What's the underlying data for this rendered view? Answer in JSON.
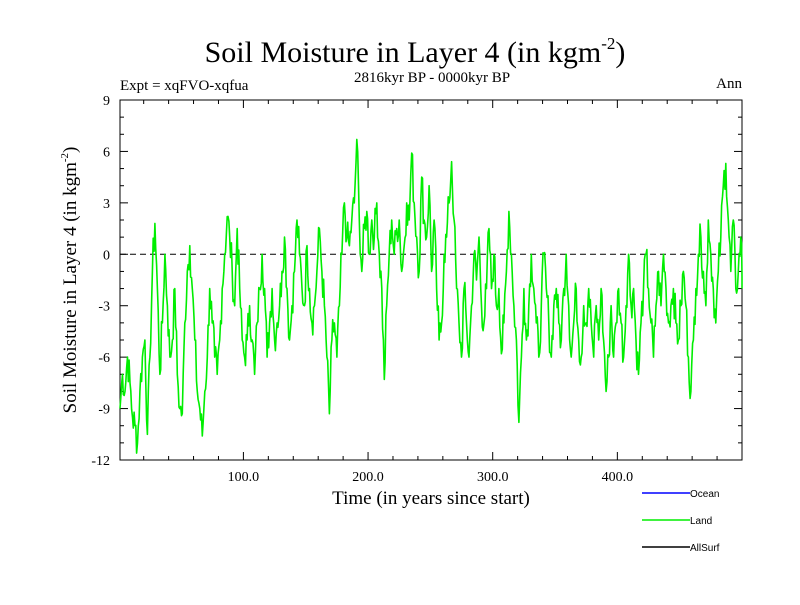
{
  "chart_data": {
    "type": "line",
    "title": "Soil Moisture in Layer 4 (in kgm",
    "title_exponent": "-2",
    "title_close": ")",
    "subtitle": "2816kyr BP - 0000kyr BP",
    "expt_label": "Expt = xqFVO-xqfua",
    "period_label": "Ann",
    "xlabel": "Time (in years since start)",
    "ylabel": "Soil Moisture in Layer 4 (in kgm",
    "ylabel_exponent": "-2",
    "ylabel_close": ")",
    "xlim": [
      1,
      500
    ],
    "ylim": [
      -12,
      9
    ],
    "x_ticks": [
      100,
      200,
      300,
      400
    ],
    "x_tick_labels": [
      "100.0",
      "200.0",
      "300.0",
      "400.0"
    ],
    "y_ticks": [
      -12,
      -9,
      -6,
      -3,
      0,
      3,
      6,
      9
    ],
    "y_tick_labels": [
      "-12",
      "-9",
      "-6",
      "-3",
      "0",
      "3",
      "6",
      "9"
    ],
    "zero_line": true,
    "legend": [
      {
        "name": "Ocean",
        "color": "#0000ff"
      },
      {
        "name": "Land",
        "color": "#00ee00"
      },
      {
        "name": "AllSurf",
        "color": "#000000"
      }
    ],
    "series": [
      {
        "name": "Land",
        "color": "#00ee00",
        "anchors": [
          [
            1,
            -9
          ],
          [
            3,
            -7
          ],
          [
            5,
            -8
          ],
          [
            7,
            -6
          ],
          [
            9,
            -7.5
          ],
          [
            11,
            -9.5
          ],
          [
            13,
            -10
          ],
          [
            15,
            -11
          ],
          [
            17,
            -8
          ],
          [
            19,
            -6
          ],
          [
            21,
            -5
          ],
          [
            23,
            -10.5
          ],
          [
            25,
            -6
          ],
          [
            27,
            -1
          ],
          [
            29,
            1.8
          ],
          [
            31,
            -2
          ],
          [
            33,
            -7
          ],
          [
            35,
            -4
          ],
          [
            37,
            0
          ],
          [
            39,
            -3
          ],
          [
            41,
            -6
          ],
          [
            43,
            -5
          ],
          [
            45,
            -2
          ],
          [
            47,
            -7
          ],
          [
            49,
            -9
          ],
          [
            51,
            -9.3
          ],
          [
            53,
            -4
          ],
          [
            55,
            -1
          ],
          [
            57,
            0.5
          ],
          [
            59,
            -2
          ],
          [
            61,
            -5
          ],
          [
            63,
            -8
          ],
          [
            65,
            -9
          ],
          [
            67,
            -10.6
          ],
          [
            69,
            -8
          ],
          [
            71,
            -6
          ],
          [
            73,
            -2
          ],
          [
            75,
            -4
          ],
          [
            77,
            -6
          ],
          [
            79,
            -7
          ],
          [
            81,
            -5
          ],
          [
            83,
            -2
          ],
          [
            85,
            0
          ],
          [
            87,
            2.2
          ],
          [
            89,
            1
          ],
          [
            91,
            -1
          ],
          [
            93,
            -3
          ],
          [
            95,
            1.5
          ],
          [
            97,
            -2
          ],
          [
            99,
            -5
          ],
          [
            101,
            -6
          ],
          [
            103,
            -5
          ],
          [
            105,
            -3
          ],
          [
            107,
            -5
          ],
          [
            109,
            -7
          ],
          [
            111,
            -4
          ],
          [
            113,
            -2
          ],
          [
            115,
            0
          ],
          [
            117,
            -2
          ],
          [
            119,
            -6
          ],
          [
            121,
            -4
          ],
          [
            123,
            -2
          ],
          [
            125,
            -5
          ],
          [
            127,
            -4
          ],
          [
            129,
            -3
          ],
          [
            131,
            -1
          ],
          [
            133,
            1
          ],
          [
            135,
            -2
          ],
          [
            137,
            -5
          ],
          [
            139,
            -3
          ],
          [
            141,
            -1
          ],
          [
            143,
            2
          ],
          [
            145,
            0
          ],
          [
            147,
            -2
          ],
          [
            149,
            -3
          ],
          [
            151,
            0.5
          ],
          [
            153,
            -2
          ],
          [
            155,
            -4
          ],
          [
            157,
            -3
          ],
          [
            159,
            -1
          ],
          [
            161,
            1.5
          ],
          [
            163,
            -1
          ],
          [
            165,
            -3
          ],
          [
            167,
            -6
          ],
          [
            169,
            -9.3
          ],
          [
            171,
            -5
          ],
          [
            173,
            -4
          ],
          [
            175,
            -6
          ],
          [
            177,
            -3
          ],
          [
            179,
            0
          ],
          [
            181,
            3
          ],
          [
            183,
            1
          ],
          [
            185,
            0.5
          ],
          [
            187,
            2
          ],
          [
            189,
            3
          ],
          [
            191,
            6.7
          ],
          [
            193,
            2
          ],
          [
            195,
            -1
          ],
          [
            197,
            1.5
          ],
          [
            199,
            2.5
          ],
          [
            201,
            0
          ],
          [
            203,
            2
          ],
          [
            205,
            1
          ],
          [
            207,
            3
          ],
          [
            209,
            0
          ],
          [
            211,
            -2
          ],
          [
            213,
            -7.3
          ],
          [
            215,
            -3
          ],
          [
            217,
            0
          ],
          [
            219,
            2
          ],
          [
            221,
            0
          ],
          [
            223,
            1.5
          ],
          [
            225,
            2
          ],
          [
            227,
            -1
          ],
          [
            229,
            0.5
          ],
          [
            231,
            3
          ],
          [
            233,
            2
          ],
          [
            235,
            5.9
          ],
          [
            237,
            3
          ],
          [
            239,
            1
          ],
          [
            241,
            -1
          ],
          [
            243,
            4.5
          ],
          [
            245,
            2
          ],
          [
            247,
            1
          ],
          [
            249,
            4
          ],
          [
            251,
            -1
          ],
          [
            253,
            2
          ],
          [
            255,
            -2
          ],
          [
            257,
            -5
          ],
          [
            259,
            -4
          ],
          [
            261,
            0
          ],
          [
            263,
            1
          ],
          [
            265,
            3
          ],
          [
            267,
            5.4
          ],
          [
            269,
            2
          ],
          [
            271,
            -2
          ],
          [
            273,
            -4
          ],
          [
            275,
            -6
          ],
          [
            277,
            -2
          ],
          [
            279,
            -4
          ],
          [
            281,
            -6
          ],
          [
            283,
            -3
          ],
          [
            285,
            0
          ],
          [
            287,
            -1.5
          ],
          [
            289,
            1
          ],
          [
            291,
            -3
          ],
          [
            293,
            -4
          ],
          [
            295,
            -2
          ],
          [
            297,
            1.5
          ],
          [
            299,
            -2
          ],
          [
            301,
            0
          ],
          [
            303,
            -3
          ],
          [
            305,
            -2
          ],
          [
            307,
            -5.8
          ],
          [
            309,
            -4
          ],
          [
            311,
            -1
          ],
          [
            313,
            2.5
          ],
          [
            315,
            0
          ],
          [
            317,
            -3
          ],
          [
            319,
            -5
          ],
          [
            321,
            -9.8
          ],
          [
            323,
            -6
          ],
          [
            325,
            -2
          ],
          [
            327,
            -5
          ],
          [
            329,
            -3
          ],
          [
            331,
            0
          ],
          [
            333,
            -2
          ],
          [
            335,
            -4
          ],
          [
            337,
            -6
          ],
          [
            339,
            -3
          ],
          [
            341,
            0
          ],
          [
            343,
            -2
          ],
          [
            345,
            -4
          ],
          [
            347,
            -6
          ],
          [
            349,
            -3
          ],
          [
            351,
            -2
          ],
          [
            353,
            -4
          ],
          [
            355,
            -5
          ],
          [
            357,
            -2
          ],
          [
            359,
            0
          ],
          [
            361,
            -3
          ],
          [
            363,
            -6
          ],
          [
            365,
            -4
          ],
          [
            367,
            -2
          ],
          [
            369,
            -5
          ],
          [
            371,
            -6
          ],
          [
            373,
            -3
          ],
          [
            375,
            -4
          ],
          [
            377,
            -2
          ],
          [
            379,
            -4
          ],
          [
            381,
            -6
          ],
          [
            383,
            -3
          ],
          [
            385,
            -5
          ],
          [
            387,
            -2
          ],
          [
            389,
            -5
          ],
          [
            391,
            -8
          ],
          [
            393,
            -6
          ],
          [
            395,
            -3
          ],
          [
            397,
            -6
          ],
          [
            399,
            -4
          ],
          [
            401,
            -2
          ],
          [
            403,
            -4
          ],
          [
            405,
            -6
          ],
          [
            407,
            -3
          ],
          [
            409,
            0
          ],
          [
            411,
            -3
          ],
          [
            413,
            -2
          ],
          [
            415,
            -5
          ],
          [
            417,
            -7
          ],
          [
            419,
            -4
          ],
          [
            421,
            -2
          ],
          [
            423,
            0
          ],
          [
            425,
            -2
          ],
          [
            427,
            -4
          ],
          [
            429,
            -6
          ],
          [
            431,
            -3
          ],
          [
            433,
            -1
          ],
          [
            435,
            -3
          ],
          [
            437,
            0
          ],
          [
            439,
            -2
          ],
          [
            441,
            -4
          ],
          [
            443,
            -3
          ],
          [
            445,
            -2
          ],
          [
            447,
            -4
          ],
          [
            449,
            -5
          ],
          [
            451,
            -3
          ],
          [
            453,
            -1
          ],
          [
            455,
            -3
          ],
          [
            457,
            -6
          ],
          [
            459,
            -8
          ],
          [
            461,
            -5
          ],
          [
            463,
            -2
          ],
          [
            465,
            0
          ],
          [
            467,
            1
          ],
          [
            469,
            -1
          ],
          [
            471,
            -3
          ],
          [
            473,
            2
          ],
          [
            475,
            0
          ],
          [
            477,
            -2
          ],
          [
            479,
            -4
          ],
          [
            481,
            -1
          ],
          [
            483,
            1
          ],
          [
            485,
            4
          ],
          [
            487,
            5.3
          ],
          [
            489,
            2
          ],
          [
            491,
            -1
          ],
          [
            493,
            2
          ],
          [
            495,
            -2
          ],
          [
            497,
            -1
          ],
          [
            499,
            1
          ],
          [
            501,
            -2
          ]
        ],
        "note": "values sampled every ~2 years; the plotted curve also includes small interannual fluctuations between samples"
      }
    ]
  }
}
